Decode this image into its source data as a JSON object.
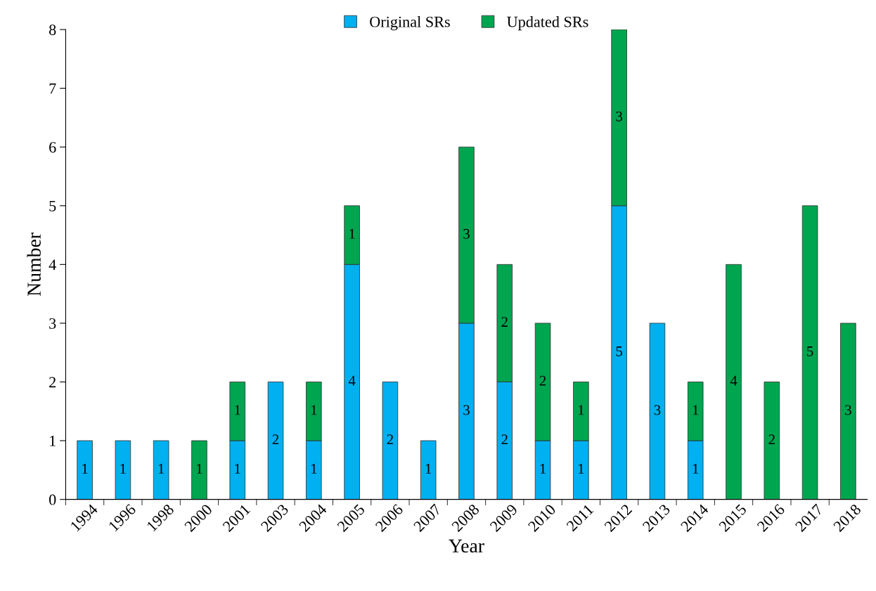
{
  "chart_data": {
    "type": "bar",
    "stacked": true,
    "xlabel": "Year",
    "ylabel": "Number",
    "categories": [
      "1994",
      "1996",
      "1998",
      "2000",
      "2001",
      "2003",
      "2004",
      "2005",
      "2006",
      "2007",
      "2008",
      "2009",
      "2010",
      "2011",
      "2012",
      "2013",
      "2014",
      "2015",
      "2016",
      "2017",
      "2018"
    ],
    "series": [
      {
        "name": "Original SRs",
        "color": "#00b0f0",
        "values": [
          1,
          1,
          1,
          null,
          1,
          2,
          1,
          4,
          2,
          1,
          3,
          2,
          1,
          1,
          5,
          3,
          1,
          null,
          null,
          null,
          null
        ]
      },
      {
        "name": "Updated SRs",
        "color": "#00a550",
        "values": [
          null,
          null,
          null,
          1,
          1,
          null,
          1,
          1,
          null,
          null,
          3,
          2,
          2,
          1,
          3,
          null,
          1,
          4,
          2,
          5,
          3
        ]
      }
    ],
    "ylim": [
      0,
      8
    ],
    "yticks": [
      0,
      1,
      2,
      3,
      4,
      5,
      6,
      7,
      8
    ],
    "data_labels": true,
    "legend": "top",
    "grid": false
  }
}
